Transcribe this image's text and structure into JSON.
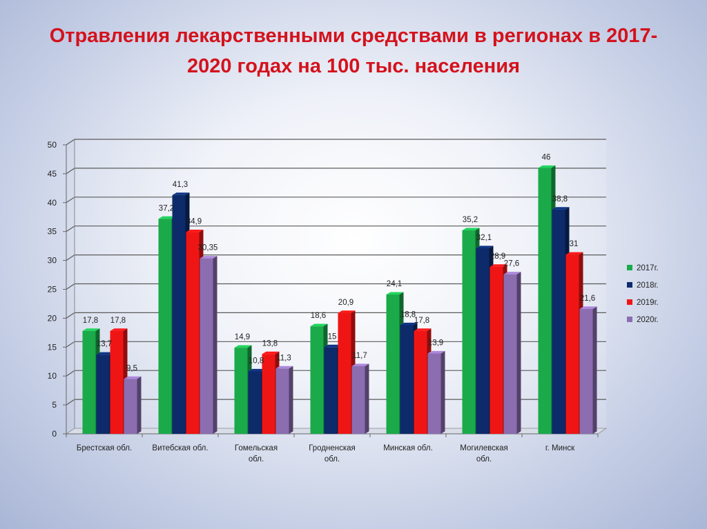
{
  "title": "Отравления лекарственными средствами в регионах в 2017-2020 годах  на 100 тыс. населения",
  "chart_data": {
    "type": "bar",
    "title": "Отравления лекарственными средствами в регионах в 2017-2020 годах  на 100 тыс. населения",
    "xlabel": "",
    "ylabel": "",
    "ylim": [
      0,
      50
    ],
    "yticks": [
      0,
      5,
      10,
      15,
      20,
      25,
      30,
      35,
      40,
      45,
      50
    ],
    "grid": true,
    "legend_position": "right",
    "categories": [
      [
        "Брестская обл."
      ],
      [
        "Витебская обл."
      ],
      [
        "Гомельская",
        "обл."
      ],
      [
        "Гродненская",
        "обл."
      ],
      [
        "Минская обл."
      ],
      [
        "Могилевская",
        "обл."
      ],
      [
        "г. Минск"
      ]
    ],
    "series": [
      {
        "name": "2017г.",
        "color": "#1aaa4a",
        "values": [
          17.8,
          37.2,
          14.9,
          18.6,
          24.1,
          35.2,
          46
        ],
        "labels": [
          "17,8",
          "37,2",
          "14,9",
          "18,6",
          "24,1",
          "35,2",
          "46"
        ]
      },
      {
        "name": "2018г.",
        "color": "#0d2a6b",
        "values": [
          13.7,
          41.3,
          10.8,
          15,
          18.8,
          32.1,
          38.8
        ],
        "labels": [
          "13,7",
          "41,3",
          "10,8",
          "15",
          "18,8",
          "32,1",
          "38,8"
        ]
      },
      {
        "name": "2019г.",
        "color": "#f01515",
        "values": [
          17.8,
          34.9,
          13.8,
          20.9,
          17.8,
          28.9,
          31
        ],
        "labels": [
          "17,8",
          "34,9",
          "13,8",
          "20,9",
          "17,8",
          "28,9",
          "31"
        ]
      },
      {
        "name": "2020г.",
        "color": "#8b6db0",
        "values": [
          9.5,
          30.35,
          11.3,
          11.7,
          13.9,
          27.6,
          21.6
        ],
        "labels": [
          "9,5",
          "30,35",
          "11,3",
          "11,7",
          "13,9",
          "27,6",
          "21,6"
        ]
      }
    ]
  }
}
